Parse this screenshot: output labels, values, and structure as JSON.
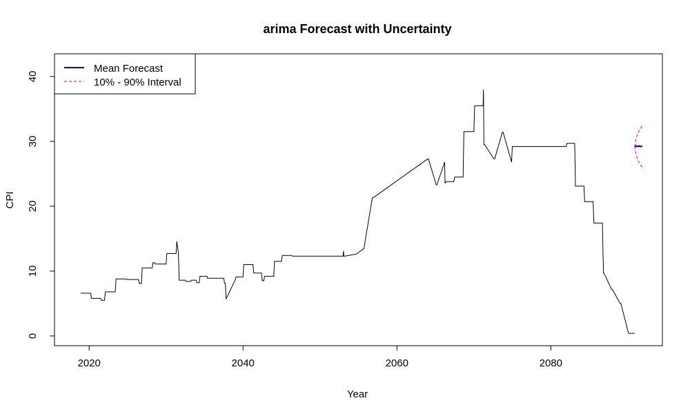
{
  "chart_data": {
    "type": "line",
    "title": "arima Forecast with Uncertainty",
    "xlabel": "Year",
    "ylabel": "CPI",
    "xlim": [
      2015.5,
      2094.5
    ],
    "ylim": [
      -1.5,
      43.5
    ],
    "x_ticks": [
      2020,
      2040,
      2060,
      2080
    ],
    "y_ticks": [
      0,
      10,
      20,
      30,
      40
    ],
    "grid": false,
    "legend_position": "top-left",
    "legend": [
      {
        "label": "Mean Forecast",
        "color": "#0000ff",
        "style": "solid"
      },
      {
        "label": "10% - 90% Interval",
        "color": "#ff0000",
        "style": "dashed"
      }
    ],
    "colors": {
      "history": "#000000",
      "mean": "#0000ff",
      "interval": "#ff0000"
    },
    "history": {
      "x": [
        2018.9,
        2020.2,
        2020.3,
        2021.5,
        2021.6,
        2022.0,
        2022.1,
        2023.4,
        2023.5,
        2024.8,
        2024.9,
        2026.4,
        2026.5,
        2026.8,
        2026.9,
        2028.2,
        2028.3,
        2028.5,
        2028.6,
        2030.0,
        2030.1,
        2031.3,
        2031.4,
        2031.6,
        2031.7,
        2032.5,
        2032.6,
        2033.2,
        2033.3,
        2033.9,
        2034.0,
        2034.3,
        2034.4,
        2035.3,
        2035.4,
        2036.5,
        2036.6,
        2037.5,
        2037.6,
        2037.7,
        2037.8,
        2039.0,
        2039.1,
        2040.0,
        2040.1,
        2041.3,
        2041.4,
        2042.4,
        2042.5,
        2042.7,
        2042.8,
        2044.0,
        2044.1,
        2045.0,
        2045.1,
        2046.3,
        2046.4,
        2053.0,
        2053.05,
        2053.1,
        2053.2,
        2054.6,
        2054.7,
        2055.6,
        2055.7,
        2056.8,
        2056.9,
        2064.0,
        2064.1,
        2065.1,
        2065.2,
        2066.2,
        2066.25,
        2066.3,
        2066.4,
        2067.4,
        2067.5,
        2068.6,
        2068.7,
        2070.0,
        2070.1,
        2071.2,
        2071.25,
        2071.3,
        2071.4,
        2072.6,
        2072.7,
        2073.7,
        2073.8,
        2074.9,
        2075.0,
        2075.1,
        2075.2,
        2082.0,
        2082.1,
        2083.1,
        2083.2,
        2084.3,
        2084.4,
        2085.5,
        2085.6,
        2086.7,
        2086.8,
        2086.85,
        2086.9,
        2087.9,
        2088.0,
        2089.0,
        2089.1,
        2090.1,
        2090.2,
        2090.9
      ],
      "y": [
        6.6,
        6.6,
        5.8,
        5.8,
        5.5,
        5.5,
        6.8,
        6.8,
        8.8,
        8.8,
        8.7,
        8.7,
        8.1,
        8.1,
        10.5,
        10.5,
        11.3,
        11.3,
        11.1,
        11.1,
        12.7,
        12.7,
        14.6,
        12.8,
        8.6,
        8.6,
        8.4,
        8.4,
        8.6,
        8.6,
        8.2,
        8.2,
        9.2,
        9.2,
        8.9,
        8.9,
        8.9,
        8.9,
        8.1,
        8.1,
        5.7,
        8.7,
        9.1,
        9.1,
        11.0,
        11.0,
        9.7,
        9.7,
        8.5,
        8.5,
        9.2,
        9.2,
        11.5,
        11.5,
        12.4,
        12.4,
        12.3,
        12.3,
        13.1,
        12.3,
        12.3,
        12.6,
        12.6,
        13.4,
        13.4,
        21.3,
        21.3,
        27.3,
        27.3,
        23.3,
        23.3,
        26.8,
        23.6,
        23.6,
        23.8,
        23.8,
        24.5,
        24.5,
        31.5,
        31.5,
        35.5,
        35.5,
        38.0,
        29.5,
        29.5,
        27.3,
        27.3,
        31.4,
        31.4,
        26.8,
        29.2,
        29.2,
        29.2,
        29.2,
        29.7,
        29.7,
        23.1,
        23.1,
        20.7,
        20.7,
        17.4,
        17.4,
        12.0,
        9.7,
        9.7,
        7.2,
        7.2,
        5.0,
        5.0,
        0.4,
        0.4,
        0.4
      ]
    },
    "forecast": {
      "x": [
        2090.9,
        2091.1,
        2091.3,
        2091.5,
        2091.7,
        2091.9
      ],
      "mean": [
        29.2,
        29.3,
        29.2,
        29.3,
        29.2,
        29.3
      ],
      "lower": [
        29.2,
        27.9,
        27.2,
        26.7,
        26.3,
        26.0
      ],
      "upper": [
        29.2,
        30.5,
        31.2,
        31.7,
        32.1,
        32.5
      ]
    }
  }
}
